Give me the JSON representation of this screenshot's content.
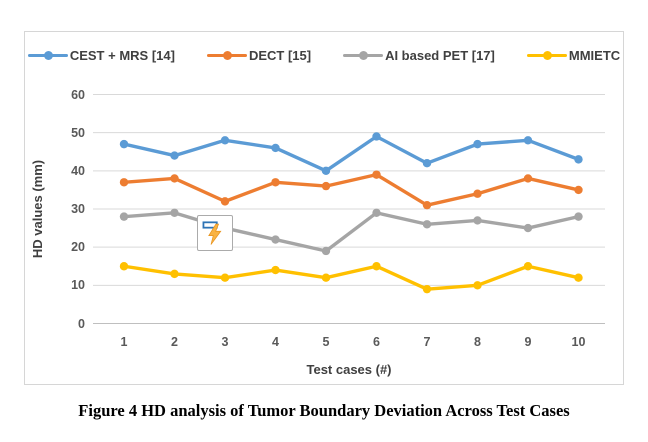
{
  "figure_caption": "Figure 4 HD analysis of Tumor Boundary Deviation Across Test Cases",
  "chart_data": {
    "type": "line",
    "title": "",
    "xlabel": "Test cases (#)",
    "ylabel": "HD values (mm)",
    "categories": [
      1,
      2,
      3,
      4,
      5,
      6,
      7,
      8,
      9,
      10
    ],
    "x_tick_labels": [
      "1",
      "2",
      "3",
      "4",
      "5",
      "6",
      "7",
      "8",
      "9",
      "10"
    ],
    "y_tick_labels_top_down": [
      "60",
      "50",
      "40",
      "30",
      "20",
      "10",
      "0"
    ],
    "y_gridline_values": [
      0,
      10,
      20,
      30,
      40,
      50,
      60
    ],
    "ylim": [
      0,
      60
    ],
    "grid": true,
    "legend_position": "top",
    "series": [
      {
        "name": "CEST + MRS [14]",
        "color": "#5B9BD5",
        "values": [
          47,
          44,
          48,
          46,
          40,
          49,
          42,
          47,
          48,
          43
        ]
      },
      {
        "name": "DECT [15]",
        "color": "#ED7D31",
        "values": [
          37,
          38,
          32,
          37,
          36,
          39,
          31,
          34,
          38,
          35
        ]
      },
      {
        "name": "AI based PET [17]",
        "color": "#A5A5A5",
        "values": [
          28,
          29,
          25,
          22,
          19,
          29,
          26,
          27,
          25,
          28
        ]
      },
      {
        "name": "MMIETC",
        "color": "#FFC000",
        "values": [
          15,
          13,
          12,
          14,
          12,
          15,
          9,
          10,
          15,
          12
        ]
      }
    ]
  },
  "overlay": {
    "flash_icon_name": "flash-fill-icon"
  },
  "colors": {
    "gridline": "#D9D9D9",
    "axis_line": "#BFBFBF",
    "tick_text": "#595959",
    "legend_text": "#404040"
  }
}
